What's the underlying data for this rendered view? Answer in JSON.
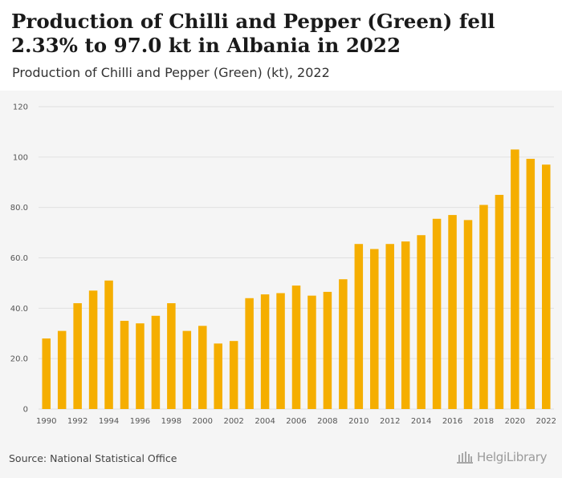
{
  "header": {
    "title": "Production of Chilli and Pepper (Green) fell 2.33% to 97.0 kt in Albania in 2022",
    "subtitle": "Production of Chilli and Pepper (Green) (kt), 2022"
  },
  "footer": {
    "source": "Source: National Statistical Office",
    "brand": "HelgiLibrary"
  },
  "colors": {
    "bar": "#F5AE00",
    "grid": "#e0e0e0",
    "axis_text": "#555555"
  },
  "chart_data": {
    "type": "bar",
    "categories": [
      "1990",
      "1991",
      "1992",
      "1993",
      "1994",
      "1995",
      "1996",
      "1997",
      "1998",
      "1999",
      "2000",
      "2001",
      "2002",
      "2003",
      "2004",
      "2005",
      "2006",
      "2007",
      "2008",
      "2009",
      "2010",
      "2011",
      "2012",
      "2013",
      "2014",
      "2015",
      "2016",
      "2017",
      "2018",
      "2019",
      "2020",
      "2021",
      "2022"
    ],
    "values": [
      28.0,
      31.0,
      42.0,
      47.0,
      51.0,
      35.0,
      34.0,
      37.0,
      42.0,
      31.0,
      33.0,
      26.0,
      27.0,
      44.0,
      45.5,
      46.0,
      49.0,
      45.0,
      46.5,
      51.5,
      65.5,
      63.5,
      65.5,
      66.5,
      69.0,
      75.5,
      77.0,
      75.0,
      81.0,
      85.0,
      103.0,
      99.3,
      97.0
    ],
    "x_tick_labels": [
      "1990",
      "1992",
      "1994",
      "1996",
      "1998",
      "2000",
      "2002",
      "2004",
      "2006",
      "2008",
      "2010",
      "2012",
      "2014",
      "2016",
      "2018",
      "2020",
      "2022"
    ],
    "y_ticks": [
      0,
      20,
      40,
      60,
      80,
      100,
      120
    ],
    "y_tick_labels": [
      "0",
      "20.0",
      "40.0",
      "60.0",
      "80.0",
      "100",
      "120"
    ],
    "ylim": [
      0,
      120
    ],
    "xlabel": "",
    "ylabel": "",
    "grid": true,
    "legend": "none"
  }
}
